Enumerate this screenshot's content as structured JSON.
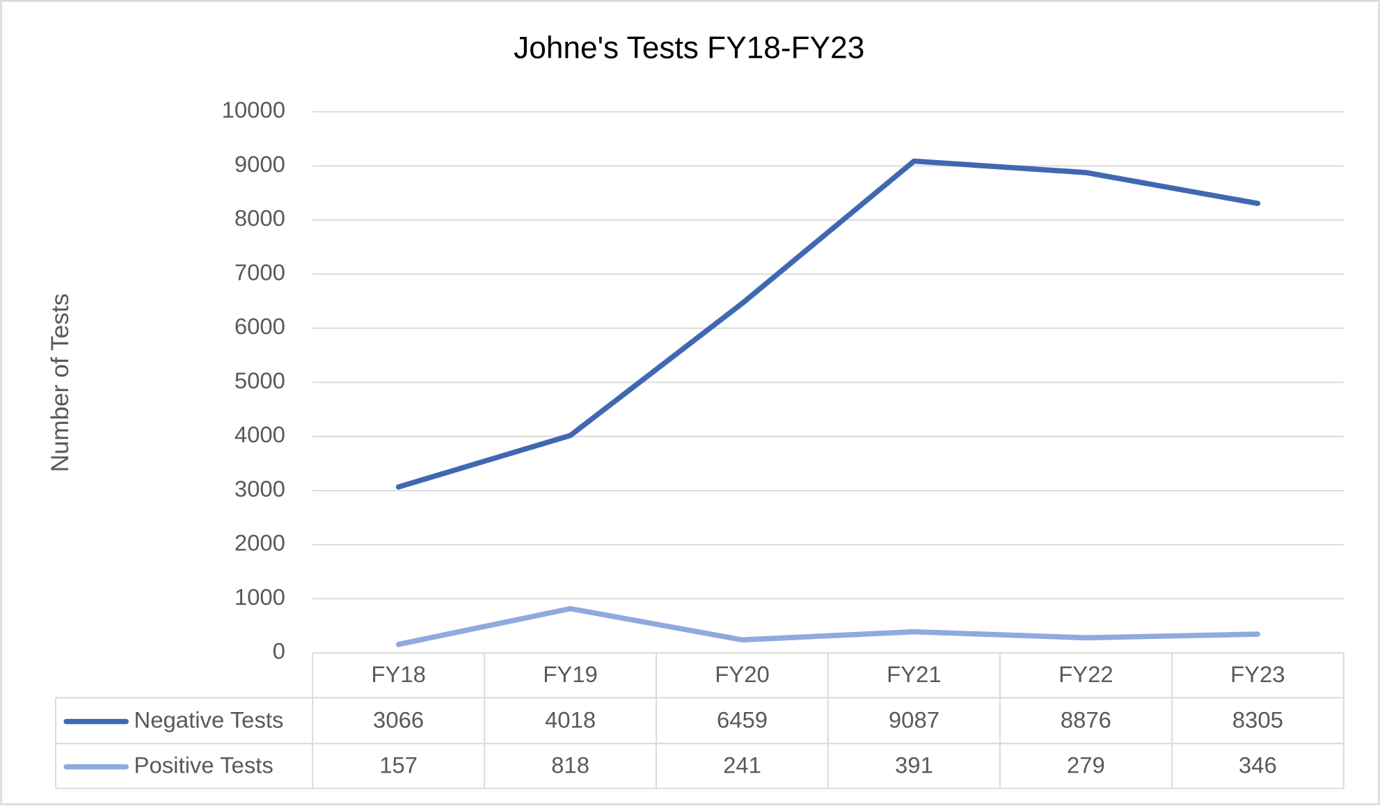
{
  "chart_data": {
    "type": "line",
    "title": "Johne's Tests FY18-FY23",
    "y_label": "Number of Tests",
    "categories": [
      "FY18",
      "FY19",
      "FY20",
      "FY21",
      "FY22",
      "FY23"
    ],
    "series": [
      {
        "name": "Negative Tests",
        "color": "#4068b2",
        "values": [
          3066,
          4018,
          6459,
          9087,
          8876,
          8305
        ]
      },
      {
        "name": "Positive Tests",
        "color": "#8faadc",
        "values": [
          157,
          818,
          241,
          391,
          279,
          346
        ]
      }
    ],
    "ylim": [
      0,
      10000
    ],
    "yticks": [
      0,
      1000,
      2000,
      3000,
      4000,
      5000,
      6000,
      7000,
      8000,
      9000,
      10000
    ],
    "grid": true
  }
}
